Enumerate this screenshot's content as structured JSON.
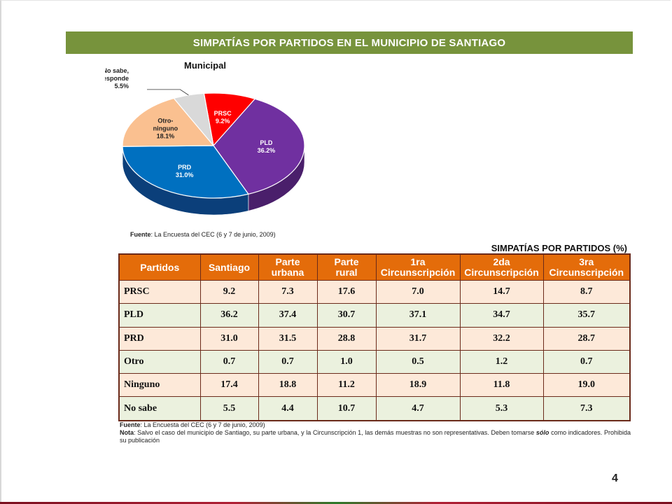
{
  "slide": {
    "title": "SIMPATÍAS POR PARTIDOS EN EL MUNICIPIO DE SANTIAGO",
    "page_number": "4"
  },
  "pie": {
    "title": "Municipal",
    "source_label": "Fuente",
    "source_text": ": La Encuesta del CEC (6 y 7 de junio, 2009)"
  },
  "chart_data": {
    "type": "pie",
    "title": "Municipal",
    "slices": [
      {
        "label": "PRSC",
        "value": 9.2,
        "value_text": "9.2%",
        "color": "#ff0000",
        "side_color": "#a80000"
      },
      {
        "label": "PLD",
        "value": 36.2,
        "value_text": "36.2%",
        "color": "#7030a0",
        "side_color": "#4a1f6b"
      },
      {
        "label": "PRD",
        "value": 31.0,
        "value_text": "31.0%",
        "color": "#0070c0",
        "side_color": "#0b3f7a"
      },
      {
        "label": "Otro-\nninguno",
        "label_lines": [
          "Otro-",
          "ninguno"
        ],
        "value": 18.1,
        "value_text": "18.1%",
        "color": "#fac090",
        "side_color": "#c98a55"
      },
      {
        "label": "No sabe, no responde",
        "label_lines": [
          "No sabe,",
          "no responde"
        ],
        "value": 5.5,
        "value_text": "5.5%",
        "color": "#d9d9d9",
        "side_color": "#9a9a9a"
      }
    ]
  },
  "table": {
    "title": "SIMPATÍAS POR PARTIDOS (%)",
    "headers": [
      {
        "lines": [
          "Partidos"
        ]
      },
      {
        "lines": [
          "Santiago"
        ]
      },
      {
        "lines": [
          "Parte",
          "urbana"
        ]
      },
      {
        "lines": [
          "Parte",
          "rural"
        ]
      },
      {
        "lines": [
          "1ra",
          "Circunscripción"
        ]
      },
      {
        "lines": [
          "2da",
          "Circunscripción"
        ]
      },
      {
        "lines": [
          "3ra",
          "Circunscripción"
        ]
      }
    ],
    "rows": [
      [
        "PRSC",
        "9.2",
        "7.3",
        "17.6",
        "7.0",
        "14.7",
        "8.7"
      ],
      [
        "PLD",
        "36.2",
        "37.4",
        "30.7",
        "37.1",
        "34.7",
        "35.7"
      ],
      [
        "PRD",
        "31.0",
        "31.5",
        "28.8",
        "31.7",
        "32.2",
        "28.7"
      ],
      [
        "Otro",
        "0.7",
        "0.7",
        "1.0",
        "0.5",
        "1.2",
        "0.7"
      ],
      [
        "Ninguno",
        "17.4",
        "18.8",
        "11.2",
        "18.9",
        "11.8",
        "19.0"
      ],
      [
        "No sabe",
        "5.5",
        "4.4",
        "10.7",
        "4.7",
        "5.3",
        "7.3"
      ]
    ]
  },
  "notes": {
    "fuente_label": "Fuente",
    "fuente_text": ": La Encuesta del CEC (6 y 7 de junio, 2009)",
    "nota_label": "Nota",
    "nota_text_before": ": Salvo el caso del municipio de Santiago, su parte urbana, y la Circunscripción 1, las demás muestras no son representativas. Deben tomarse ",
    "nota_emphasis": "sólo",
    "nota_text_after": " como indicadores. Prohibida su publicación"
  }
}
